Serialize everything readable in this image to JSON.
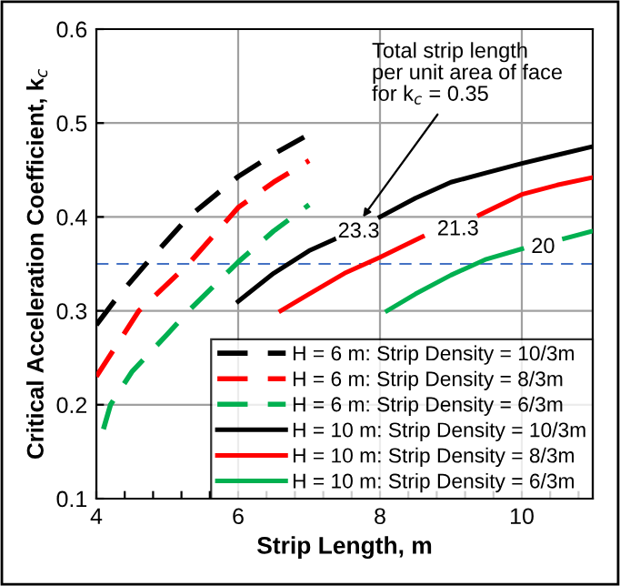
{
  "chart_data": {
    "type": "line",
    "xlabel": "Strip Length, m",
    "ylabel": "Critical Acceleration Coefficient, k$_{c}$",
    "xlim": [
      4,
      11
    ],
    "ylim": [
      0.1,
      0.6
    ],
    "xticks": [
      4,
      {
        "value": 4.4,
        "label": null
      },
      {
        "value": 4.8,
        "label": null
      },
      {
        "value": 5.2,
        "label": null
      },
      {
        "value": 5.6,
        "label": null
      },
      6,
      {
        "value": 6.4,
        "label": null
      },
      {
        "value": 6.8,
        "label": null
      },
      {
        "value": 7.2,
        "label": null
      },
      {
        "value": 7.6,
        "label": null
      },
      8,
      {
        "value": 8.4,
        "label": null
      },
      {
        "value": 8.8,
        "label": null
      },
      {
        "value": 9.2,
        "label": null
      },
      {
        "value": 9.6,
        "label": null
      },
      10,
      {
        "value": 10.4,
        "label": null
      },
      {
        "value": 10.8,
        "label": null
      }
    ],
    "yticks": [
      0.1,
      0.2,
      0.3,
      0.4,
      0.5,
      0.6
    ],
    "grid": true,
    "legend": "bottom right",
    "marker": "none",
    "series": [
      {
        "name": "H = 6 m: Strip Density = 10/3m",
        "color": "#000000",
        "line_style": "dashed",
        "x": [
          4,
          4.3,
          4.7,
          5.3,
          6,
          6.5,
          7
        ],
        "values": [
          0.285,
          0.315,
          0.35,
          0.4,
          0.443,
          0.467,
          0.488
        ]
      },
      {
        "name": "H = 6 m: Strip Density = 8/3m",
        "color": "#ff0000",
        "line_style": "dashed",
        "x": [
          4,
          4.3,
          4.6,
          5.3,
          6,
          6.5,
          7
        ],
        "values": [
          0.23,
          0.265,
          0.3,
          0.35,
          0.41,
          0.437,
          0.46
        ]
      },
      {
        "name": "H = 6 m: Strip Density = 6/3m",
        "color": "#00b050",
        "line_style": "dashed",
        "x": [
          4.1,
          4.2,
          4.5,
          5,
          5.3,
          6,
          6.5,
          7
        ],
        "values": [
          0.174,
          0.2,
          0.235,
          0.275,
          0.3,
          0.352,
          0.385,
          0.413
        ]
      },
      {
        "name": "H = 10 m: Strip Density = 10/3m",
        "color": "#000000",
        "line_style": "solid",
        "x": [
          6,
          6.5,
          7,
          7.35,
          7.7,
          8,
          8.5,
          9,
          9.5,
          10,
          10.5,
          11
        ],
        "values": [
          0.31,
          0.34,
          0.364,
          0.376,
          null,
          0.4,
          0.42,
          0.437,
          0.447,
          0.457,
          0.466,
          0.475
        ]
      },
      {
        "name": "H = 10 m: Strip Density = 8/3m",
        "color": "#ff0000",
        "line_style": "solid",
        "x": [
          6.6,
          7,
          7.5,
          8,
          8.6,
          9.1,
          9.4,
          10,
          10.5,
          11
        ],
        "values": [
          0.3,
          0.318,
          0.34,
          0.357,
          0.379,
          null,
          0.402,
          0.424,
          0.434,
          0.442
        ]
      },
      {
        "name": "H = 10 m: Strip Density = 6/3m",
        "color": "#00b050",
        "line_style": "solid",
        "x": [
          8.1,
          8.5,
          9,
          9.5,
          10,
          10.3,
          10.6,
          11
        ],
        "values": [
          0.3,
          0.318,
          0.338,
          0.355,
          0.366,
          null,
          0.377,
          0.385
        ]
      }
    ],
    "ref_lines": [
      {
        "axis": "y",
        "value": 0.35,
        "color": "#4472c4",
        "line_style": "dashed"
      }
    ],
    "annotations": [
      "Total strip length\nper unit area of face\nfor k$_{c}$ = 0.35",
      "23.3",
      "21.3",
      "20"
    ]
  }
}
